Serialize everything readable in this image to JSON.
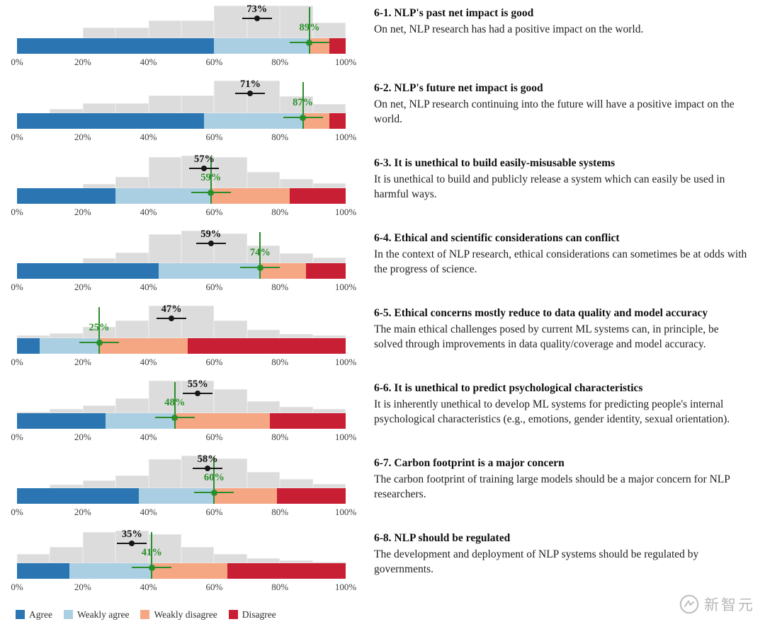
{
  "chart_data": {
    "type": "bar",
    "stacked": true,
    "orientation": "horizontal",
    "axis_ticks": [
      "0%",
      "20%",
      "40%",
      "60%",
      "80%",
      "100%"
    ],
    "xlim": [
      0,
      100
    ],
    "grid": false,
    "legend_position": "bottom-left",
    "legend": [
      {
        "label": "Agree",
        "color": "#2b76b2"
      },
      {
        "label": "Weakly agree",
        "color": "#abcfe2"
      },
      {
        "label": "Weakly disagree",
        "color": "#f5a784"
      },
      {
        "label": "Disagree",
        "color": "#c91f35"
      }
    ],
    "marker_colors": {
      "predicted": "#161616",
      "actual": "#2a8f2a"
    },
    "histogram_color": "#dcdcdc",
    "questions": [
      {
        "id": "6-1",
        "title": "6-1. NLP's past net impact is good",
        "description": "On net, NLP research has had a positive impact on the world.",
        "predicted_pct": 73,
        "predicted_label": "73%",
        "actual_pct": 89,
        "actual_label": "89%",
        "segments": [
          60,
          29,
          6,
          5
        ],
        "hist_bins": [
          0,
          0,
          32,
          32,
          55,
          55,
          100,
          100,
          100,
          48
        ]
      },
      {
        "id": "6-2",
        "title": "6-2. NLP's future net impact is good",
        "description": "On net, NLP research continuing into the future will have a positive impact on the world.",
        "predicted_pct": 71,
        "predicted_label": "71%",
        "actual_pct": 87,
        "actual_label": "87%",
        "segments": [
          57,
          30,
          8,
          5
        ],
        "hist_bins": [
          0,
          14,
          30,
          30,
          55,
          55,
          100,
          100,
          52,
          28
        ]
      },
      {
        "id": "6-3",
        "title": "6-3. It is unethical to build easily-misusable systems",
        "description": "It is unethical to build and publicly release a system which can easily be used in harmful ways.",
        "predicted_pct": 57,
        "predicted_label": "57%",
        "actual_pct": 59,
        "actual_label": "59%",
        "segments": [
          30,
          29,
          24,
          17
        ],
        "hist_bins": [
          0,
          0,
          14,
          35,
          95,
          100,
          95,
          50,
          28,
          16
        ]
      },
      {
        "id": "6-4",
        "title": "6-4. Ethical and scientific considerations can conflict",
        "description": "In the context of NLP research, ethical considerations can sometimes be at odds with the progress of science.",
        "predicted_pct": 59,
        "predicted_label": "59%",
        "actual_pct": 74,
        "actual_label": "74%",
        "segments": [
          43,
          31,
          14,
          12
        ],
        "hist_bins": [
          0,
          0,
          15,
          32,
          90,
          100,
          92,
          55,
          30,
          18
        ]
      },
      {
        "id": "6-5",
        "title": "6-5. Ethical concerns mostly reduce to data quality and model accuracy",
        "description": "The main ethical challenges posed by current ML systems can, in principle, be solved through improvements in data quality/coverage and model accuracy.",
        "predicted_pct": 47,
        "predicted_label": "47%",
        "actual_pct": 25,
        "actual_label": "25%",
        "segments": [
          7,
          18,
          27,
          48
        ],
        "hist_bins": [
          8,
          16,
          35,
          55,
          100,
          100,
          55,
          26,
          12,
          8
        ]
      },
      {
        "id": "6-6",
        "title": "6-6. It is unethical to predict psychological characteristics",
        "description": "It is inherently unethical to develop ML systems for predicting people's internal psychological characteristics (e.g., emotions, gender identity, sexual orientation).",
        "predicted_pct": 55,
        "predicted_label": "55%",
        "actual_pct": 48,
        "actual_label": "48%",
        "segments": [
          27,
          21,
          29,
          23
        ],
        "hist_bins": [
          5,
          12,
          25,
          45,
          100,
          100,
          75,
          38,
          20,
          12
        ]
      },
      {
        "id": "6-7",
        "title": "6-7. Carbon footprint is a major concern",
        "description": "The carbon footprint of training large models should be a major concern for NLP researchers.",
        "predicted_pct": 58,
        "predicted_label": "58%",
        "actual_pct": 60,
        "actual_label": "60%",
        "segments": [
          37,
          23,
          19,
          21
        ],
        "hist_bins": [
          0,
          10,
          25,
          40,
          90,
          100,
          92,
          50,
          28,
          14
        ]
      },
      {
        "id": "6-8",
        "title": "6-8. NLP should be regulated",
        "description": "The development and deployment of NLP systems should be regulated by governments.",
        "predicted_pct": 35,
        "predicted_label": "35%",
        "actual_pct": 41,
        "actual_label": "41%",
        "segments": [
          16,
          25,
          23,
          36
        ],
        "hist_bins": [
          28,
          50,
          95,
          100,
          90,
          50,
          28,
          16,
          8,
          4
        ]
      }
    ]
  },
  "watermark": {
    "text": "新智元"
  }
}
